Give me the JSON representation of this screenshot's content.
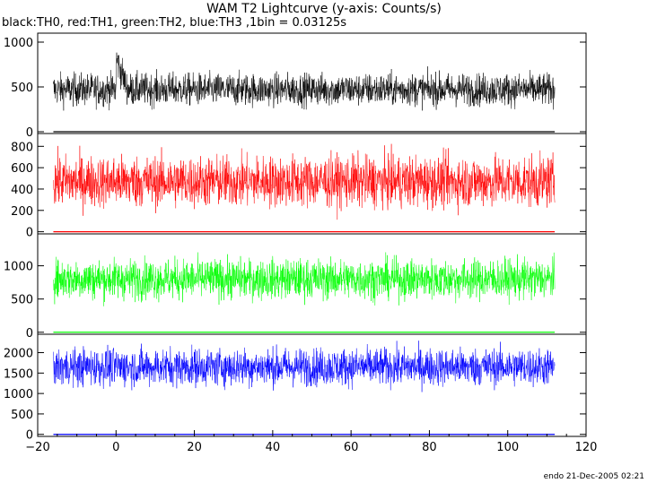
{
  "title": "WAM T2 Lightcurve (y-axis: Counts/s)",
  "subtitle": "black:TH0, red:TH1, green:TH2, blue:TH3 ,1bin = 0.03125s",
  "footer": "endo 21-Dec-2005 02:21",
  "chart_data": {
    "type": "line",
    "xlim": [
      -20,
      120
    ],
    "x_ticks": [
      -20,
      0,
      20,
      40,
      60,
      80,
      100,
      120
    ],
    "x_tick_labels": [
      "−20",
      "0",
      "20",
      "40",
      "60",
      "80",
      "100",
      "120"
    ],
    "data_x_range": [
      -16,
      112
    ],
    "panels": [
      {
        "series": "TH0",
        "color": "#000000",
        "ylim": [
          -20,
          1100
        ],
        "y_ticks": [
          0,
          500,
          1000
        ],
        "y_tick_labels": [
          "0",
          "500",
          "1000"
        ],
        "baseline": 470,
        "noise_spread": 90
      },
      {
        "series": "TH1",
        "color": "#ff0000",
        "ylim": [
          -20,
          920
        ],
        "y_ticks": [
          0,
          200,
          400,
          600,
          800
        ],
        "y_tick_labels": [
          "0",
          "200",
          "400",
          "600",
          "800"
        ],
        "baseline": 470,
        "noise_spread": 120
      },
      {
        "series": "TH2",
        "color": "#00ff00",
        "ylim": [
          -30,
          1480
        ],
        "y_ticks": [
          0,
          500,
          1000
        ],
        "y_tick_labels": [
          "0",
          "500",
          "1000"
        ],
        "baseline": 800,
        "noise_spread": 150
      },
      {
        "series": "TH3",
        "color": "#0000ff",
        "ylim": [
          -50,
          2450
        ],
        "y_ticks": [
          0,
          500,
          1000,
          1500,
          2000
        ],
        "y_tick_labels": [
          "0",
          "500",
          "1000",
          "1500",
          "2000"
        ],
        "baseline": 1650,
        "noise_spread": 230
      }
    ]
  }
}
